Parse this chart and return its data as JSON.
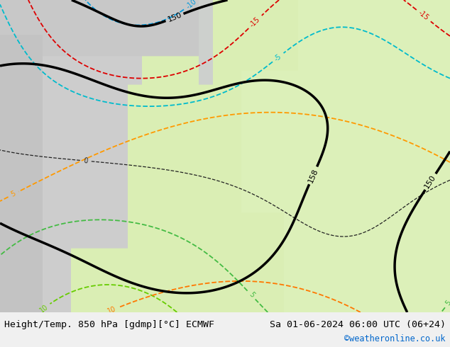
{
  "title_left": "Height/Temp. 850 hPa [gdmp][°C] ECMWF",
  "title_right": "Sa 01-06-2024 06:00 UTC (06+24)",
  "credit": "©weatheronline.co.uk",
  "credit_color": "#0066cc",
  "bg_color": "#f0f0f0",
  "bottom_bar_color": "#ffffff",
  "text_color": "#000000",
  "fig_width": 6.34,
  "fig_height": 4.9,
  "dpi": 100,
  "font_size_title": 9.5,
  "font_size_credit": 8.5
}
